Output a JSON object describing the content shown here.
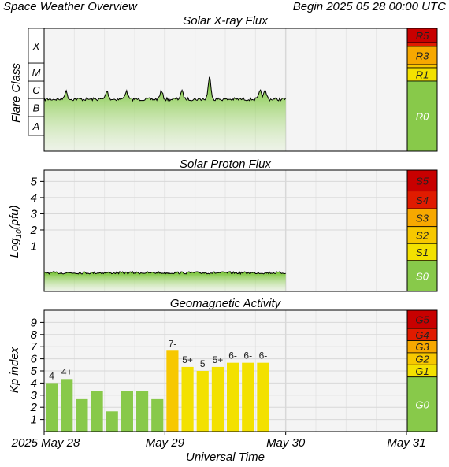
{
  "header": {
    "title": "Space Weather Overview",
    "begin_label": "Begin 2025 05 28 00:00 UTC"
  },
  "colors": {
    "plot_bg": "#f4f4f4",
    "grid": "#d8d8d8",
    "green": "#88c94a",
    "yellow": "#f3e100",
    "orange": "#f7a800",
    "red_orange": "#f46a00",
    "red": "#e01b00",
    "dark_red": "#c80000",
    "axis": "#000000"
  },
  "x_axis": {
    "ticks": [
      "2025 May 28",
      "May 29",
      "May 30",
      "May 31"
    ],
    "label": "Universal Time"
  },
  "chart_data": [
    {
      "type": "area",
      "title": "Solar X-ray Flux",
      "ylabel": "Flare Class",
      "y_categories": [
        "A",
        "B",
        "C",
        "M",
        "X"
      ],
      "x_unit": "days since 2025 May 28 00:00 UTC",
      "x_range": [
        0,
        3
      ],
      "x_data_end": 2.0,
      "baseline_class": "B",
      "peak_events": [
        {
          "x": 0.18,
          "class": "C"
        },
        {
          "x": 0.52,
          "class": "C"
        },
        {
          "x": 0.68,
          "class": "C"
        },
        {
          "x": 0.97,
          "class": "C"
        },
        {
          "x": 1.14,
          "class": "C"
        },
        {
          "x": 1.37,
          "class": "M"
        },
        {
          "x": 1.79,
          "class": "C"
        },
        {
          "x": 1.83,
          "class": "C"
        }
      ],
      "scale": [
        {
          "label": "R0",
          "color": "#88c94a"
        },
        {
          "label": "R1",
          "color": "#f3e100"
        },
        {
          "label": "R3",
          "color": "#f7a800"
        },
        {
          "label": "R5",
          "color": "#c80000"
        }
      ]
    },
    {
      "type": "area",
      "title": "Solar Proton Flux",
      "ylabel": "Log10(pfu)",
      "ylabel_main": "Log",
      "ylabel_sub": "10",
      "ylabel_paren": "(pfu)",
      "ytick_labels": [
        "1",
        "2",
        "3",
        "4",
        "5"
      ],
      "yticks": [
        1,
        2,
        3,
        4,
        5
      ],
      "ylim": [
        -1.8,
        5.7
      ],
      "x_range": [
        0,
        3
      ],
      "x_data_end": 2.0,
      "baseline": -0.65,
      "scale": [
        {
          "label": "S0",
          "color": "#88c94a"
        },
        {
          "label": "S1",
          "color": "#f3e100"
        },
        {
          "label": "S2",
          "color": "#f7c800"
        },
        {
          "label": "S3",
          "color": "#f7a800"
        },
        {
          "label": "S4",
          "color": "#e01b00"
        },
        {
          "label": "S5",
          "color": "#c80000"
        }
      ]
    },
    {
      "type": "bar",
      "title": "Geomagnetic Activity",
      "ylabel": "Kp index",
      "ytick_labels": [
        "1",
        "2",
        "3",
        "4",
        "5",
        "6",
        "7",
        "8",
        "9"
      ],
      "yticks": [
        1,
        2,
        3,
        4,
        5,
        6,
        7,
        8,
        9
      ],
      "ylim": [
        0,
        10
      ],
      "x_range": [
        0,
        3
      ],
      "bar_step": 0.125,
      "values": [
        4.0,
        4.33,
        2.67,
        3.33,
        1.67,
        3.33,
        3.33,
        2.67,
        6.67,
        5.33,
        5.0,
        5.33,
        5.67,
        5.67,
        5.67
      ],
      "labels": [
        "4",
        "4+",
        "",
        "",
        "",
        "",
        "",
        "",
        "7-",
        "5+",
        "5",
        "5+",
        "6-",
        "6-",
        "6-"
      ],
      "bar_colors": [
        "#88c94a",
        "#88c94a",
        "#88c94a",
        "#88c94a",
        "#88c94a",
        "#88c94a",
        "#88c94a",
        "#88c94a",
        "#f7c800",
        "#f3e100",
        "#f3e100",
        "#f3e100",
        "#f3e100",
        "#f3e100",
        "#f3e100"
      ],
      "scale": [
        {
          "label": "G0",
          "color": "#88c94a"
        },
        {
          "label": "G1",
          "color": "#f3e100"
        },
        {
          "label": "G2",
          "color": "#f7c800"
        },
        {
          "label": "G3",
          "color": "#f7a800"
        },
        {
          "label": "G4",
          "color": "#e01b00"
        },
        {
          "label": "G5",
          "color": "#c80000"
        }
      ]
    }
  ]
}
